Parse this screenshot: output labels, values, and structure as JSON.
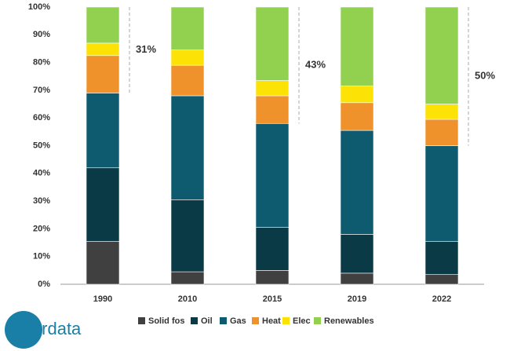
{
  "chart_data": {
    "type": "stacked_bar",
    "categories": [
      "1990",
      "2010",
      "2015",
      "2019",
      "2022"
    ],
    "series": [
      {
        "name": "Solid fos",
        "color": "#404040",
        "values": [
          15.5,
          4.5,
          5,
          4,
          3.5
        ]
      },
      {
        "name": "Oil",
        "color": "#0b3a47",
        "values": [
          26.5,
          26,
          15.5,
          14,
          12
        ]
      },
      {
        "name": "Gas",
        "color": "#0e5a6e",
        "values": [
          27,
          37.5,
          37.5,
          37.5,
          34.5
        ]
      },
      {
        "name": "Heat",
        "color": "#f0922b",
        "values": [
          13.5,
          11,
          10,
          10,
          9.5
        ]
      },
      {
        "name": "Elec",
        "color": "#fce205",
        "values": [
          4.5,
          5.5,
          5.5,
          6,
          5.5
        ]
      },
      {
        "name": "Renewables",
        "color": "#92d050",
        "values": [
          13,
          15.5,
          26.5,
          28.5,
          35
        ]
      }
    ],
    "annotations": [
      "31%",
      null,
      "43%",
      null,
      "50%"
    ],
    "ylim": [
      0,
      100
    ],
    "yticks": [
      {
        "value": 0,
        "label": "0%"
      },
      {
        "value": 10,
        "label": "10%"
      },
      {
        "value": 20,
        "label": "20%"
      },
      {
        "value": 30,
        "label": "30%"
      },
      {
        "value": 40,
        "label": "40%"
      },
      {
        "value": 50,
        "label": "50%"
      },
      {
        "value": 60,
        "label": "60%"
      },
      {
        "value": 70,
        "label": "70%"
      },
      {
        "value": 80,
        "label": "80%"
      },
      {
        "value": 90,
        "label": "90%"
      },
      {
        "value": 100,
        "label": "100%"
      }
    ],
    "legend": "bottom",
    "logo": "Enerdata"
  }
}
